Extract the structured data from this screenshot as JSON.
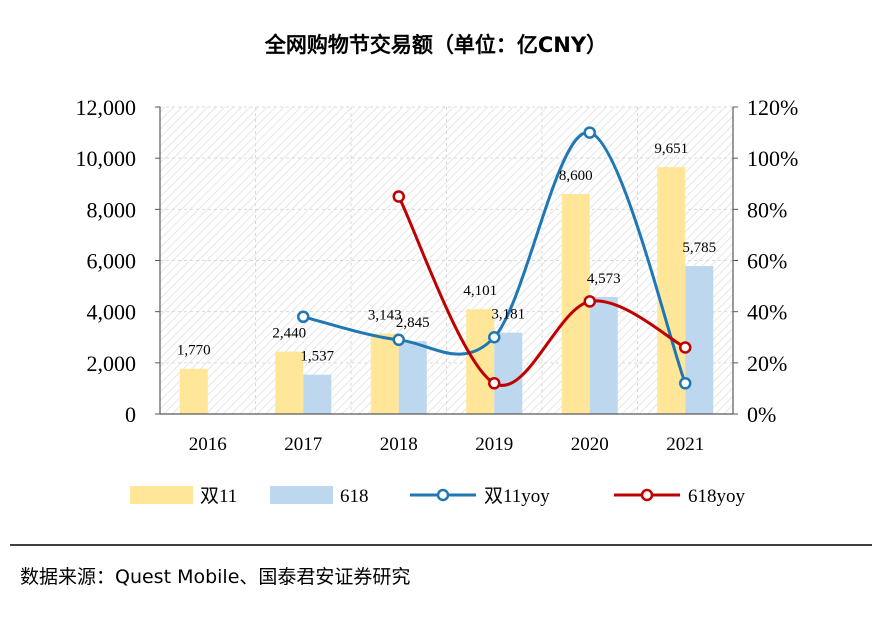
{
  "chart_data": {
    "type": "bar",
    "title": "全网购物节交易额（单位：亿CNY）",
    "categories": [
      "2016",
      "2017",
      "2018",
      "2019",
      "2020",
      "2021"
    ],
    "series": [
      {
        "name": "双11",
        "kind": "bar",
        "axis": "left",
        "color": "#FFE699",
        "values": [
          1770,
          2440,
          3143,
          4101,
          8600,
          9651
        ],
        "labels": [
          "1,770",
          "2,440",
          "3,143",
          "4,101",
          "8,600",
          "9,651"
        ]
      },
      {
        "name": "618",
        "kind": "bar",
        "axis": "left",
        "color": "#BDD7EE",
        "values": [
          null,
          1537,
          2845,
          3181,
          4573,
          5785
        ],
        "labels": [
          "",
          "1,537",
          "2,845",
          "3,181",
          "4,573",
          "5,785"
        ]
      },
      {
        "name": "双11yoy",
        "kind": "line",
        "axis": "right",
        "color": "#1F77B4",
        "values": [
          null,
          38,
          29,
          30,
          110,
          12
        ]
      },
      {
        "name": "618yoy",
        "kind": "line",
        "axis": "right",
        "color": "#C00000",
        "values": [
          null,
          null,
          85,
          12,
          44,
          26
        ]
      }
    ],
    "y_left": {
      "min": 0,
      "max": 12000,
      "ticks": [
        "0",
        "2,000",
        "4,000",
        "6,000",
        "8,000",
        "10,000",
        "12,000"
      ]
    },
    "y_right": {
      "min": 0,
      "max": 120,
      "ticks": [
        "0%",
        "20%",
        "40%",
        "60%",
        "80%",
        "100%",
        "120%"
      ]
    },
    "legend": [
      "双11",
      "618",
      "双11yoy",
      "618yoy"
    ]
  },
  "source": "数据来源：Quest Mobile、国泰君安证券研究"
}
